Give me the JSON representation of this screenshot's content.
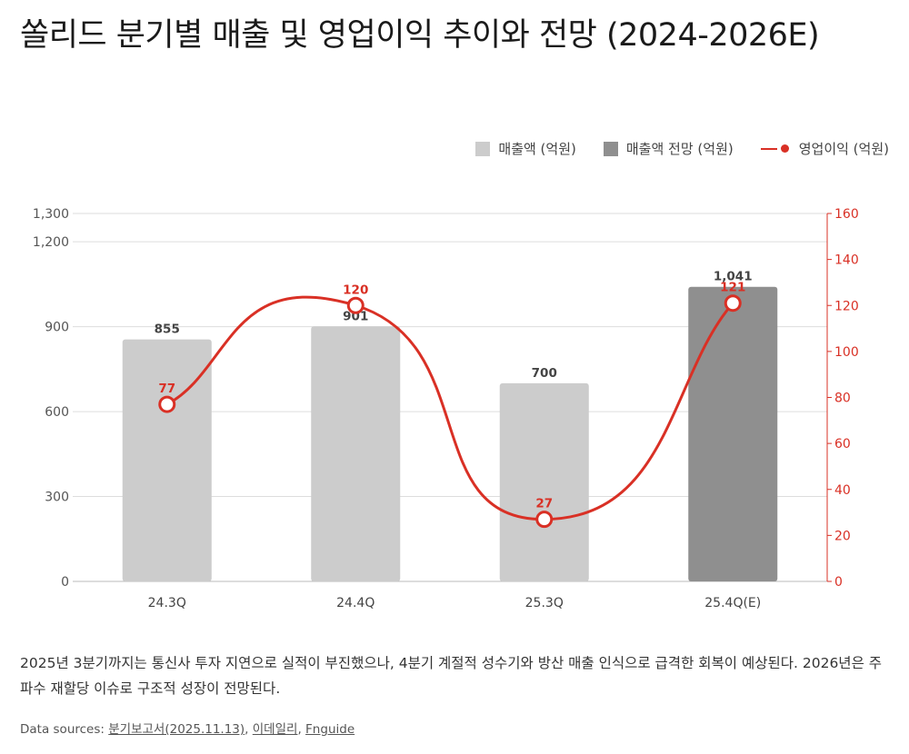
{
  "title": "쏠리드 분기별 매출 및 영업이익 추이와 전망 (2024-2026E)",
  "legend": {
    "revenue": "매출액 (억원)",
    "revenue_forecast": "매출액 전망 (억원)",
    "operating_profit": "영업이익 (억원)"
  },
  "caption": "2025년 3분기까지는 통신사 투자 지연으로 실적이 부진했으나, 4분기 계절적 성수기와 방산 매출 인식으로 급격한 회복이 예상된다. 2026년은 주파수 재할당 이슈로 구조적 성장이 전망된다.",
  "sources": {
    "prefix": "Data sources: ",
    "items": [
      "분기보고서(2025.11.13)",
      "이데일리",
      "Fnguide"
    ],
    "separator": ", "
  },
  "colors": {
    "bar": "#cccccc",
    "bar_forecast": "#8f8f8f",
    "line": "#d93025",
    "grid": "#dddddd",
    "axis_text_left": "#555555",
    "axis_text_right": "#d93025"
  },
  "chart_data": {
    "type": "bar",
    "categories": [
      "24.3Q",
      "24.4Q",
      "25.3Q",
      "25.4Q(E)"
    ],
    "series": [
      {
        "name": "매출액 (억원)",
        "type": "bar",
        "axis": "left",
        "values": [
          855,
          901,
          700,
          1041
        ],
        "forecast": [
          false,
          false,
          false,
          true
        ]
      },
      {
        "name": "영업이익 (억원)",
        "type": "line",
        "axis": "right",
        "values": [
          77,
          120,
          27,
          121
        ]
      }
    ],
    "bar_labels": [
      "855",
      "901",
      "700",
      "1,041"
    ],
    "line_labels": [
      "77",
      "120",
      "27",
      "121"
    ],
    "y_left": {
      "lim": [
        0,
        1300
      ],
      "ticks": [
        0,
        300,
        600,
        900,
        1200,
        1300
      ],
      "tick_labels": [
        "0",
        "300",
        "600",
        "900",
        "1,200",
        "1,300"
      ]
    },
    "y_right": {
      "lim": [
        0,
        160
      ],
      "ticks": [
        0,
        20,
        40,
        60,
        80,
        100,
        120,
        140,
        160
      ],
      "tick_labels": [
        "0",
        "20",
        "40",
        "60",
        "80",
        "100",
        "120",
        "140",
        "160"
      ]
    },
    "grid": true,
    "legend_position": "top-right"
  }
}
